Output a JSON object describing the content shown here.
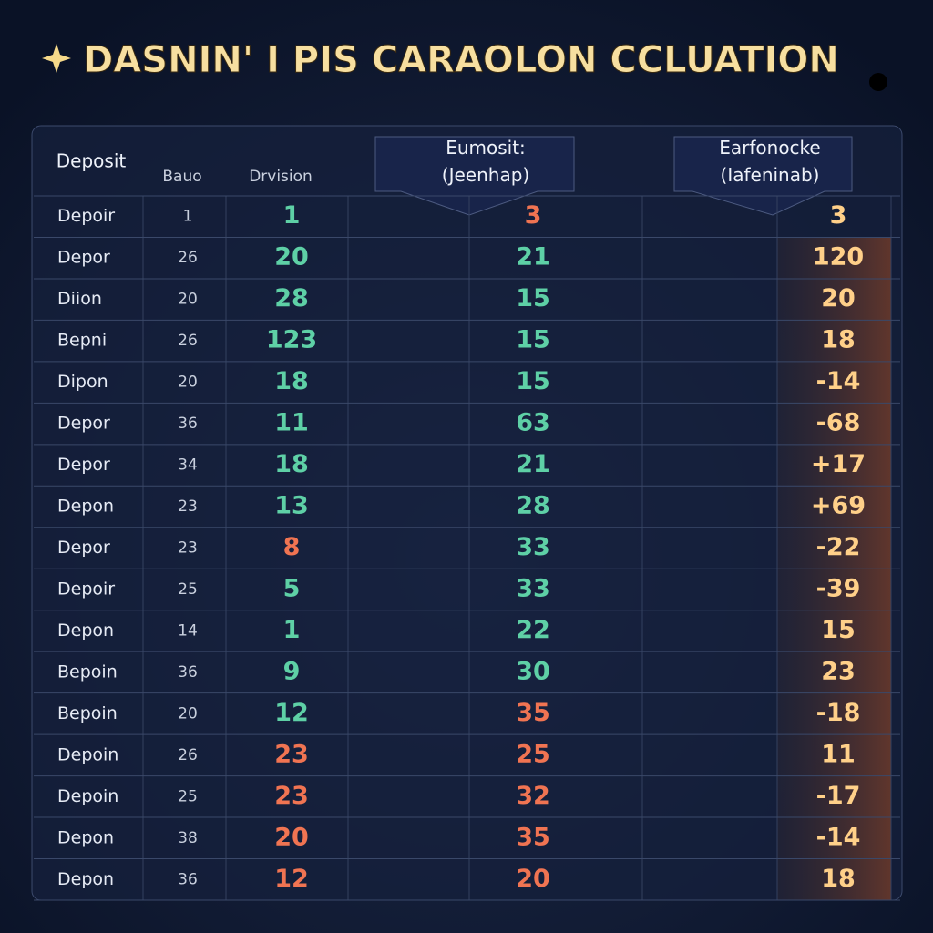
{
  "header": {
    "title": "DASNIN' I PIS CARAOLON CCLUATION"
  },
  "table": {
    "columns": [
      "Deposit",
      "Bauo",
      "Drvision",
      "Eumosit: (Jeenhap)",
      "Earfonocke (Iafeninab)"
    ],
    "rows": [
      [
        "Depoir",
        "1",
        "1",
        "3",
        "3"
      ],
      [
        "Depor",
        "26",
        "20",
        "21",
        "120"
      ],
      [
        "Diion",
        "20",
        "28",
        "15",
        "20"
      ],
      [
        "Bepni",
        "26",
        "123",
        "15",
        "18"
      ],
      [
        "Dipon",
        "20",
        "18",
        "15",
        "-14"
      ],
      [
        "Depor",
        "36",
        "11",
        "63",
        "-68"
      ],
      [
        "Depor",
        "34",
        "18",
        "21",
        "+17"
      ],
      [
        "Depon",
        "23",
        "13",
        "28",
        "+69"
      ],
      [
        "Depor",
        "23",
        "8",
        "33",
        "-22"
      ],
      [
        "Depoir",
        "25",
        "5",
        "33",
        "-39"
      ],
      [
        "Depon",
        "14",
        "1",
        "22",
        "15"
      ],
      [
        "Bepoin",
        "36",
        "9",
        "30",
        "23"
      ],
      [
        "Bepoin",
        "20",
        "12",
        "35",
        "-18"
      ],
      [
        "Depoin",
        "26",
        "23",
        "25",
        "11"
      ],
      [
        "Depoin",
        "25",
        "23",
        "32",
        "-17"
      ],
      [
        "Depon",
        "38",
        "20",
        "35",
        "-14"
      ],
      [
        "Depon",
        "36",
        "12",
        "20",
        "18"
      ]
    ]
  }
}
